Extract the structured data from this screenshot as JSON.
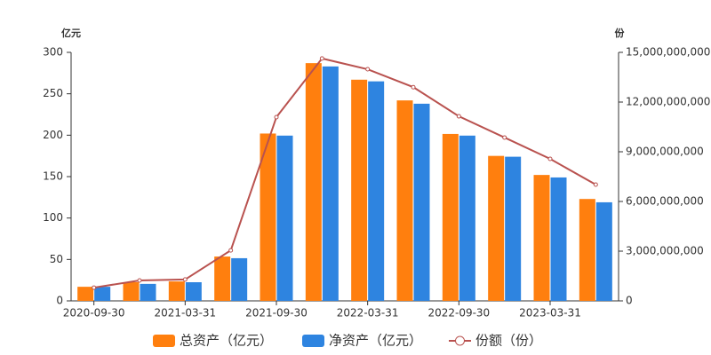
{
  "chart_data": {
    "type": "bar-line",
    "y_label": "亿元",
    "y2_label": "份",
    "categories": [
      "2020-09-30",
      null,
      "2021-03-31",
      null,
      "2021-09-30",
      null,
      "2022-03-31",
      null,
      "2022-09-30",
      null,
      "2023-03-31",
      null
    ],
    "series": [
      {
        "name": "总资产（亿元）",
        "type": "bar",
        "color": "#ff7f0e",
        "values": [
          17,
          22.5,
          23.5,
          53.5,
          202,
          287,
          267,
          242,
          201.5,
          175,
          152,
          123
        ]
      },
      {
        "name": "净资产（亿元）",
        "type": "bar",
        "color": "#2e84e0",
        "values": [
          17,
          20.5,
          22.5,
          51.5,
          199.5,
          283,
          265,
          238,
          199.5,
          174,
          149,
          119
        ]
      },
      {
        "name": "份额（份）",
        "type": "line",
        "axis": "y2",
        "color": "#b9524f",
        "values": [
          800000000,
          1230000000,
          1290000000,
          3050000000,
          11090000000,
          14630000000,
          13980000000,
          12900000000,
          11140000000,
          9860000000,
          8570000000,
          7020000000
        ]
      }
    ],
    "ylim": [
      0,
      300
    ],
    "yticks": [
      0,
      50,
      100,
      150,
      200,
      250,
      300
    ],
    "y2lim": [
      0,
      15000000000
    ],
    "y2ticks": [
      0,
      {
        "value": 3000000000,
        "label": "3,000,000,000"
      },
      {
        "value": 6000000000,
        "label": "6,000,000,000"
      },
      {
        "value": 9000000000,
        "label": "9,000,000,000"
      },
      {
        "value": 12000000000,
        "label": "12,000,000,000"
      },
      {
        "value": 15000000000,
        "label": "15,000,000,000"
      }
    ],
    "grid": false
  }
}
